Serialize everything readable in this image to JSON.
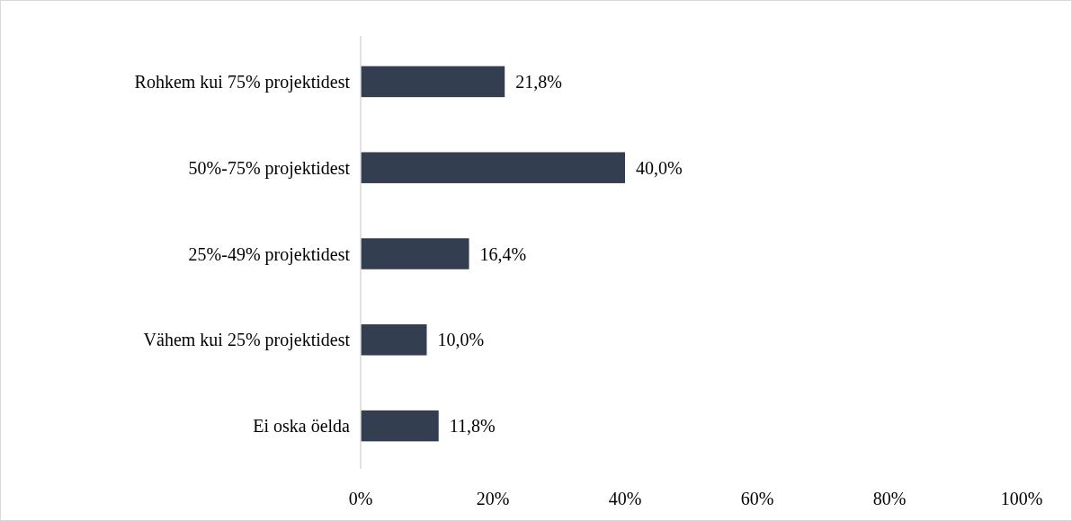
{
  "chart_data": {
    "type": "bar",
    "orientation": "horizontal",
    "categories": [
      "Rohkem kui 75% projektidest",
      "50%-75% projektidest",
      "25%-49% projektidest",
      "Vähem kui 25% projektidest",
      "Ei oska öelda"
    ],
    "values": [
      21.8,
      40.0,
      16.4,
      10.0,
      11.8
    ],
    "value_labels": [
      "21,8%",
      "40,0%",
      "16,4%",
      "10,0%",
      "11,8%"
    ],
    "color": "#333f50",
    "xlim": [
      0,
      100
    ],
    "xticks": [
      {
        "value": 0,
        "label": "0%"
      },
      {
        "value": 20,
        "label": "20%"
      },
      {
        "value": 40,
        "label": "40%"
      },
      {
        "value": 60,
        "label": "60%"
      },
      {
        "value": 80,
        "label": "80%"
      },
      {
        "value": 100,
        "label": "100%"
      }
    ],
    "grid": false
  }
}
